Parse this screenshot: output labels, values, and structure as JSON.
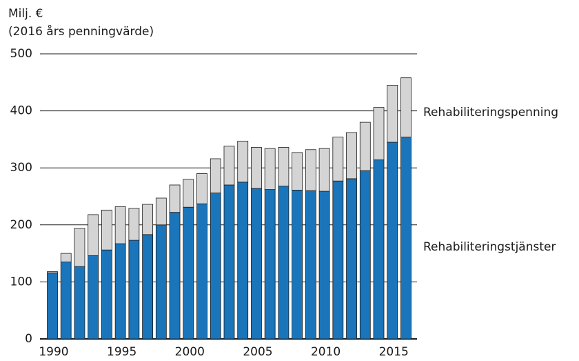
{
  "chart_data": {
    "type": "stacked_bar",
    "y_axis_label": [
      "Milj. €",
      "(2016 års penningvärde)"
    ],
    "categories": [
      "1990",
      null,
      null,
      null,
      null,
      "1995",
      null,
      null,
      null,
      null,
      "2000",
      null,
      null,
      null,
      null,
      "2005",
      null,
      null,
      null,
      null,
      "2010",
      null,
      null,
      null,
      null,
      "2015",
      null
    ],
    "series": [
      {
        "name": "Rehabiliteringstjänster",
        "color": "#1a75bb",
        "values": [
          116,
          135,
          127,
          146,
          156,
          167,
          173,
          183,
          200,
          222,
          231,
          237,
          256,
          270,
          275,
          264,
          262,
          268,
          261,
          260,
          259,
          277,
          281,
          295,
          314,
          345,
          354
        ]
      },
      {
        "name": "Rehabiliteringspenning",
        "color": "#d4d4d4",
        "values": [
          2,
          15,
          67,
          72,
          70,
          65,
          56,
          53,
          47,
          48,
          49,
          53,
          60,
          68,
          72,
          72,
          72,
          68,
          66,
          72,
          75,
          77,
          81,
          85,
          92,
          100,
          104
        ]
      }
    ],
    "ylim": [
      0,
      500
    ],
    "yticks": [
      0,
      100,
      200,
      300,
      400,
      500
    ],
    "grid": true
  }
}
